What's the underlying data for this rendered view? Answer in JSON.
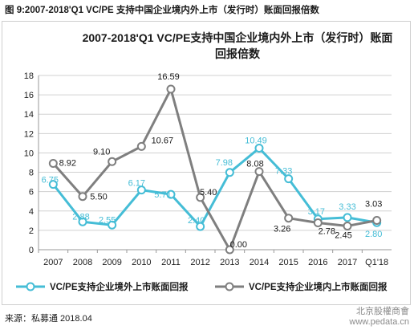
{
  "figure_caption": "图 9:2007-2018'Q1 VC/PE 支持中国企业境内外上市（发行时）账面回报倍数",
  "source": "来源：私募通 2018.04",
  "watermark": {
    "line1": "北京股權商會",
    "line2": "www.pedata.cn"
  },
  "colors": {
    "series_overseas": "#45bdd6",
    "series_domestic": "#7f7f7f",
    "grid": "#d0d0d0"
  },
  "chart_data": {
    "type": "line",
    "title_lines": [
      "2007-2018'Q1 VC/PE支持中国企业境内外上市（发行时）账面",
      "回报倍数"
    ],
    "categories": [
      "2007",
      "2008",
      "2009",
      "2010",
      "2011",
      "2012",
      "2013",
      "2014",
      "2015",
      "2016",
      "2017",
      "Q1'18"
    ],
    "ylim": [
      0,
      18
    ],
    "yticks": [
      "0",
      "2",
      "4",
      "6",
      "8",
      "10",
      "12",
      "14",
      "16",
      "18"
    ],
    "grid": true,
    "legend_position": "bottom",
    "series": [
      {
        "name": "VC/PE支持企业境外上市账面回报",
        "values": [
          6.75,
          2.88,
          2.55,
          6.17,
          5.71,
          2.4,
          7.98,
          10.49,
          7.33,
          3.17,
          3.33,
          2.8
        ],
        "labels": [
          "6.75",
          "2.88",
          "2.55",
          "6.17",
          "5.71",
          "2.40",
          "7.98",
          "10.49",
          "7.33",
          "3.17",
          "3.33",
          "2.80"
        ]
      },
      {
        "name": "VC/PE支持企业境内上市账面回报",
        "values": [
          8.92,
          5.5,
          9.1,
          10.67,
          16.59,
          5.4,
          0.0,
          8.08,
          3.26,
          2.78,
          2.45,
          3.03
        ],
        "labels": [
          "8.92",
          "5.50",
          "9.10",
          "10.67",
          "16.59",
          "5.40",
          "0.00",
          "8.08",
          "3.26",
          "2.78",
          "2.45",
          "3.03"
        ]
      }
    ]
  }
}
